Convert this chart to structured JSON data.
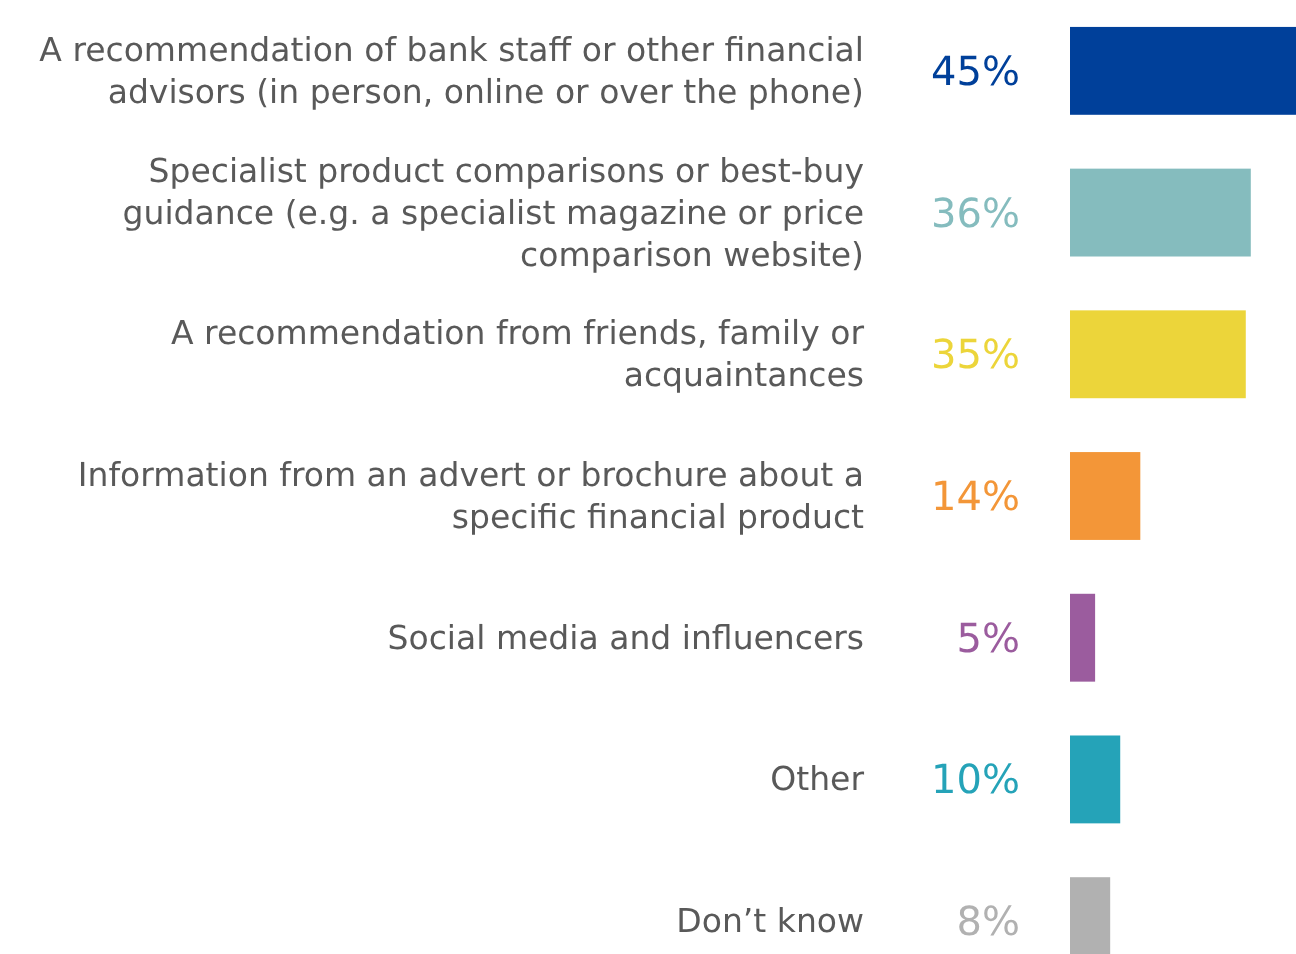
{
  "chart_data": {
    "type": "bar",
    "orientation": "horizontal",
    "categories": [
      "A recommendation of bank staff or other financial advisors (in person, online or over the phone)",
      "Specialist product comparisons or best-buy guidance (e.g. a specialist magazine or price comparison website)",
      "A recommendation from friends, family or acquaintances",
      "Information from an advert or brochure about a specific financial product",
      "Social media and influencers",
      "Other",
      "Don’t know"
    ],
    "values": [
      45,
      36,
      35,
      14,
      5,
      10,
      8
    ],
    "value_labels": [
      "45%",
      "36%",
      "35%",
      "14%",
      "5%",
      "10%",
      "8%"
    ],
    "colors": [
      "#00409a",
      "#85bcbe",
      "#ecd53a",
      "#f39638",
      "#9b5c9e",
      "#25a3b8",
      "#b1b1b1"
    ]
  }
}
